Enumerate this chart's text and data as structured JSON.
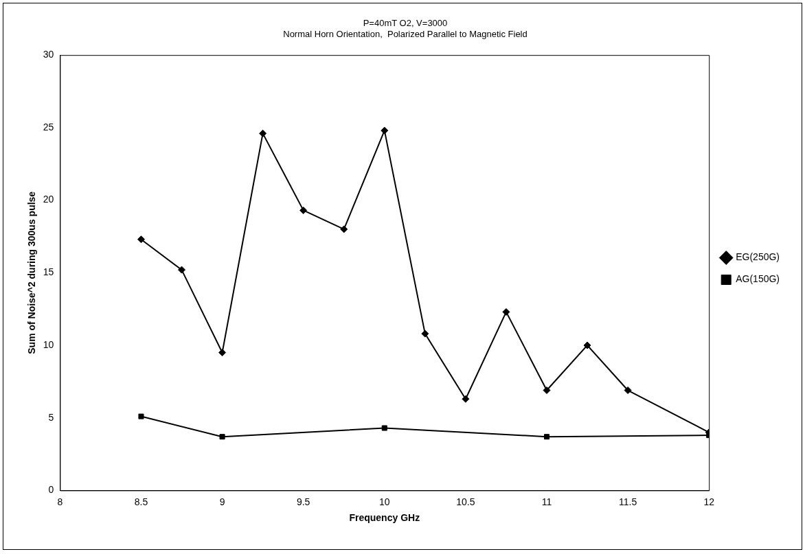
{
  "chart_data": {
    "type": "line",
    "title": "P=40mT O2, V=3000",
    "subtitle": "Normal Horn Orientation,  Polarized Parallel to Magnetic Field",
    "xlabel": "Frequency GHz",
    "ylabel": "Sum of Noise^2 during 300us pulse",
    "xlim": [
      8,
      12
    ],
    "xticks": [
      8,
      8.5,
      9,
      9.5,
      10,
      10.5,
      11,
      11.5,
      12
    ],
    "ylim": [
      0,
      30
    ],
    "yticks": [
      0,
      5,
      10,
      15,
      20,
      25,
      30
    ],
    "legend": "right",
    "grid": false,
    "line_style": "solid",
    "series": [
      {
        "name": "EG(250G)",
        "color": "#000000",
        "marker": "diamond",
        "x": [
          8.5,
          8.75,
          9,
          9.25,
          9.5,
          9.75,
          10,
          10.25,
          10.5,
          10.75,
          11,
          11.25,
          11.5,
          12
        ],
        "values": [
          17.3,
          15.2,
          9.5,
          24.6,
          19.3,
          18.0,
          24.8,
          10.8,
          6.3,
          12.3,
          6.9,
          10.0,
          6.9,
          4.0
        ]
      },
      {
        "name": "AG(150G)",
        "color": "#000000",
        "marker": "square",
        "x": [
          8.5,
          9,
          10,
          11,
          12
        ],
        "values": [
          5.1,
          3.7,
          4.3,
          3.7,
          3.8
        ]
      }
    ]
  }
}
